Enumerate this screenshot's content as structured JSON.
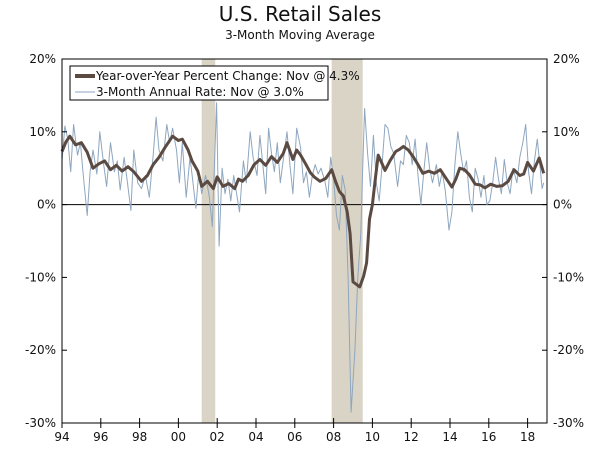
{
  "chart_data": {
    "type": "line",
    "title": "U.S. Retail Sales",
    "subtitle": "3-Month Moving Average",
    "ylim": [
      -30,
      20
    ],
    "yticks": [
      "20%",
      "10%",
      "0%",
      "-10%",
      "-20%",
      "-30%"
    ],
    "ytick_values": [
      20,
      10,
      0,
      -10,
      -20,
      -30
    ],
    "xlim": [
      1994,
      2019
    ],
    "xticks": [
      "94",
      "96",
      "98",
      "00",
      "02",
      "04",
      "06",
      "08",
      "10",
      "12",
      "14",
      "16",
      "18"
    ],
    "xtick_values": [
      1994,
      1996,
      1998,
      2000,
      2002,
      2004,
      2006,
      2008,
      2010,
      2012,
      2014,
      2016,
      2018
    ],
    "legend_position": "top-left",
    "recessions": [
      [
        2001.2,
        2001.9
      ],
      [
        2007.9,
        2009.5
      ]
    ],
    "colors": {
      "yoy": "#5a4a42",
      "annual_rate": "#8ea6bf",
      "recession": "#d9d4c6",
      "zero_line": "#000000"
    },
    "series": [
      {
        "name": "Year-over-Year Percent Change: Nov @ 4.3%",
        "key": "yoy",
        "points": [
          [
            1994.0,
            7.3
          ],
          [
            1994.2,
            8.6
          ],
          [
            1994.4,
            9.4
          ],
          [
            1994.7,
            8.2
          ],
          [
            1995.0,
            8.5
          ],
          [
            1995.3,
            7.2
          ],
          [
            1995.6,
            5.0
          ],
          [
            1995.9,
            5.6
          ],
          [
            1996.2,
            6.0
          ],
          [
            1996.5,
            4.8
          ],
          [
            1996.8,
            5.4
          ],
          [
            1997.1,
            4.6
          ],
          [
            1997.4,
            5.2
          ],
          [
            1997.7,
            4.5
          ],
          [
            1998.1,
            3.2
          ],
          [
            1998.4,
            4.0
          ],
          [
            1998.7,
            5.5
          ],
          [
            1999.0,
            6.5
          ],
          [
            1999.3,
            7.8
          ],
          [
            1999.7,
            9.4
          ],
          [
            2000.0,
            8.8
          ],
          [
            2000.2,
            9.0
          ],
          [
            2000.5,
            7.5
          ],
          [
            2000.7,
            6.0
          ],
          [
            2001.0,
            4.6
          ],
          [
            2001.2,
            2.5
          ],
          [
            2001.5,
            3.2
          ],
          [
            2001.8,
            2.2
          ],
          [
            2002.0,
            3.8
          ],
          [
            2002.3,
            2.5
          ],
          [
            2002.6,
            2.9
          ],
          [
            2002.9,
            2.2
          ],
          [
            2003.1,
            3.5
          ],
          [
            2003.3,
            3.2
          ],
          [
            2003.6,
            4.0
          ],
          [
            2003.9,
            5.5
          ],
          [
            2004.2,
            6.2
          ],
          [
            2004.5,
            5.4
          ],
          [
            2004.8,
            6.6
          ],
          [
            2005.1,
            5.8
          ],
          [
            2005.4,
            7.0
          ],
          [
            2005.6,
            8.5
          ],
          [
            2005.9,
            6.2
          ],
          [
            2006.1,
            7.5
          ],
          [
            2006.3,
            6.8
          ],
          [
            2006.6,
            5.4
          ],
          [
            2006.8,
            4.4
          ],
          [
            2007.0,
            3.8
          ],
          [
            2007.3,
            3.2
          ],
          [
            2007.6,
            3.6
          ],
          [
            2007.9,
            4.8
          ],
          [
            2008.1,
            3.2
          ],
          [
            2008.3,
            1.8
          ],
          [
            2008.5,
            1.2
          ],
          [
            2008.7,
            -1.0
          ],
          [
            2008.85,
            -4.0
          ],
          [
            2009.0,
            -10.6
          ],
          [
            2009.35,
            -11.3
          ],
          [
            2009.55,
            -9.8
          ],
          [
            2009.7,
            -8.0
          ],
          [
            2009.85,
            -2.0
          ],
          [
            2010.0,
            0.0
          ],
          [
            2010.15,
            3.5
          ],
          [
            2010.3,
            6.8
          ],
          [
            2010.5,
            5.6
          ],
          [
            2010.65,
            4.7
          ],
          [
            2010.9,
            6.0
          ],
          [
            2011.2,
            7.3
          ],
          [
            2011.4,
            7.6
          ],
          [
            2011.6,
            8.0
          ],
          [
            2011.85,
            7.5
          ],
          [
            2012.1,
            6.6
          ],
          [
            2012.35,
            5.5
          ],
          [
            2012.6,
            4.3
          ],
          [
            2012.9,
            4.6
          ],
          [
            2013.2,
            4.3
          ],
          [
            2013.5,
            4.8
          ],
          [
            2013.8,
            3.6
          ],
          [
            2014.1,
            2.4
          ],
          [
            2014.3,
            3.5
          ],
          [
            2014.5,
            5.0
          ],
          [
            2014.75,
            4.8
          ],
          [
            2015.0,
            4.1
          ],
          [
            2015.3,
            2.8
          ],
          [
            2015.55,
            2.7
          ],
          [
            2015.8,
            2.3
          ],
          [
            2016.1,
            2.8
          ],
          [
            2016.4,
            2.5
          ],
          [
            2016.7,
            2.6
          ],
          [
            2017.0,
            3.2
          ],
          [
            2017.3,
            4.8
          ],
          [
            2017.6,
            4.0
          ],
          [
            2017.8,
            4.2
          ],
          [
            2018.0,
            5.8
          ],
          [
            2018.3,
            4.6
          ],
          [
            2018.6,
            6.4
          ],
          [
            2018.83,
            4.3
          ]
        ]
      },
      {
        "name": "3-Month Annual Rate: Nov @ 3.0%",
        "key": "annual_rate",
        "points": [
          [
            1994.0,
            6.0
          ],
          [
            1994.15,
            10.8
          ],
          [
            1994.3,
            9.0
          ],
          [
            1994.45,
            4.5
          ],
          [
            1994.6,
            11.0
          ],
          [
            1994.8,
            6.8
          ],
          [
            1994.95,
            8.5
          ],
          [
            1995.1,
            4.0
          ],
          [
            1995.3,
            -1.5
          ],
          [
            1995.45,
            4.5
          ],
          [
            1995.6,
            7.5
          ],
          [
            1995.8,
            4.2
          ],
          [
            1995.95,
            10.0
          ],
          [
            1996.15,
            5.5
          ],
          [
            1996.3,
            2.5
          ],
          [
            1996.5,
            8.5
          ],
          [
            1996.7,
            4.5
          ],
          [
            1996.85,
            6.0
          ],
          [
            1997.0,
            2.0
          ],
          [
            1997.2,
            6.5
          ],
          [
            1997.35,
            3.5
          ],
          [
            1997.55,
            -0.8
          ],
          [
            1997.7,
            7.5
          ],
          [
            1997.9,
            3.0
          ],
          [
            1998.1,
            2.2
          ],
          [
            1998.3,
            4.0
          ],
          [
            1998.5,
            1.0
          ],
          [
            1998.7,
            6.8
          ],
          [
            1998.85,
            12.0
          ],
          [
            1999.0,
            7.5
          ],
          [
            1999.2,
            6.0
          ],
          [
            1999.4,
            11.0
          ],
          [
            1999.55,
            8.5
          ],
          [
            1999.7,
            10.5
          ],
          [
            1999.9,
            7.5
          ],
          [
            2000.05,
            3.0
          ],
          [
            2000.2,
            8.5
          ],
          [
            2000.4,
            1.0
          ],
          [
            2000.6,
            6.5
          ],
          [
            2000.75,
            3.0
          ],
          [
            2000.9,
            -0.5
          ],
          [
            2001.05,
            4.5
          ],
          [
            2001.2,
            1.5
          ],
          [
            2001.4,
            4.0
          ],
          [
            2001.6,
            1.0
          ],
          [
            2001.75,
            -3.0
          ],
          [
            2001.97,
            14.0
          ],
          [
            2002.1,
            -5.7
          ],
          [
            2002.25,
            5.0
          ],
          [
            2002.4,
            1.5
          ],
          [
            2002.55,
            3.5
          ],
          [
            2002.7,
            0.5
          ],
          [
            2002.85,
            4.0
          ],
          [
            2003.0,
            1.5
          ],
          [
            2003.15,
            -1.0
          ],
          [
            2003.35,
            6.0
          ],
          [
            2003.5,
            3.0
          ],
          [
            2003.7,
            10.0
          ],
          [
            2003.85,
            6.5
          ],
          [
            2004.05,
            4.0
          ],
          [
            2004.2,
            9.5
          ],
          [
            2004.35,
            5.5
          ],
          [
            2004.5,
            1.5
          ],
          [
            2004.65,
            10.5
          ],
          [
            2004.8,
            7.0
          ],
          [
            2004.95,
            4.5
          ],
          [
            2005.1,
            8.5
          ],
          [
            2005.25,
            3.0
          ],
          [
            2005.45,
            7.0
          ],
          [
            2005.6,
            10.0
          ],
          [
            2005.75,
            5.5
          ],
          [
            2005.9,
            1.5
          ],
          [
            2006.1,
            10.5
          ],
          [
            2006.3,
            7.8
          ],
          [
            2006.45,
            3.0
          ],
          [
            2006.6,
            4.5
          ],
          [
            2006.75,
            1.0
          ],
          [
            2006.9,
            4.0
          ],
          [
            2007.05,
            5.5
          ],
          [
            2007.2,
            4.2
          ],
          [
            2007.35,
            5.0
          ],
          [
            2007.55,
            3.2
          ],
          [
            2007.7,
            1.0
          ],
          [
            2007.85,
            6.5
          ],
          [
            2008.0,
            3.5
          ],
          [
            2008.15,
            -1.5
          ],
          [
            2008.3,
            -3.5
          ],
          [
            2008.45,
            4.0
          ],
          [
            2008.6,
            2.0
          ],
          [
            2008.75,
            -10.0
          ],
          [
            2008.9,
            -28.5
          ],
          [
            2009.1,
            -20.0
          ],
          [
            2009.25,
            -10.0
          ],
          [
            2009.4,
            -4.0
          ],
          [
            2009.5,
            5.0
          ],
          [
            2009.6,
            13.2
          ],
          [
            2009.75,
            7.0
          ],
          [
            2009.9,
            2.5
          ],
          [
            2010.05,
            9.5
          ],
          [
            2010.2,
            3.0
          ],
          [
            2010.35,
            0.5
          ],
          [
            2010.5,
            5.5
          ],
          [
            2010.65,
            11.0
          ],
          [
            2010.8,
            10.5
          ],
          [
            2010.95,
            8.0
          ],
          [
            2011.1,
            7.0
          ],
          [
            2011.3,
            2.5
          ],
          [
            2011.45,
            6.0
          ],
          [
            2011.6,
            5.5
          ],
          [
            2011.75,
            9.5
          ],
          [
            2011.9,
            8.5
          ],
          [
            2012.05,
            5.5
          ],
          [
            2012.2,
            9.0
          ],
          [
            2012.35,
            4.0
          ],
          [
            2012.5,
            0.0
          ],
          [
            2012.65,
            4.5
          ],
          [
            2012.8,
            8.5
          ],
          [
            2012.95,
            5.0
          ],
          [
            2013.1,
            3.0
          ],
          [
            2013.3,
            5.5
          ],
          [
            2013.45,
            2.5
          ],
          [
            2013.6,
            4.5
          ],
          [
            2013.75,
            2.0
          ],
          [
            2013.95,
            -3.5
          ],
          [
            2014.1,
            -1.0
          ],
          [
            2014.25,
            5.5
          ],
          [
            2014.4,
            10.0
          ],
          [
            2014.55,
            7.0
          ],
          [
            2014.7,
            4.5
          ],
          [
            2014.85,
            6.0
          ],
          [
            2015.0,
            1.0
          ],
          [
            2015.15,
            -1.0
          ],
          [
            2015.3,
            5.0
          ],
          [
            2015.45,
            3.5
          ],
          [
            2015.6,
            1.0
          ],
          [
            2015.75,
            4.0
          ],
          [
            2015.9,
            0.0
          ],
          [
            2016.05,
            0.5
          ],
          [
            2016.2,
            3.0
          ],
          [
            2016.35,
            6.5
          ],
          [
            2016.5,
            3.5
          ],
          [
            2016.65,
            1.5
          ],
          [
            2016.8,
            6.2
          ],
          [
            2016.95,
            3.0
          ],
          [
            2017.1,
            1.5
          ],
          [
            2017.25,
            5.0
          ],
          [
            2017.45,
            3.0
          ],
          [
            2017.6,
            6.5
          ],
          [
            2017.75,
            8.5
          ],
          [
            2017.9,
            11.0
          ],
          [
            2018.05,
            4.5
          ],
          [
            2018.2,
            1.5
          ],
          [
            2018.35,
            6.0
          ],
          [
            2018.5,
            9.0
          ],
          [
            2018.65,
            5.0
          ],
          [
            2018.75,
            2.2
          ],
          [
            2018.83,
            3.0
          ]
        ]
      }
    ]
  }
}
